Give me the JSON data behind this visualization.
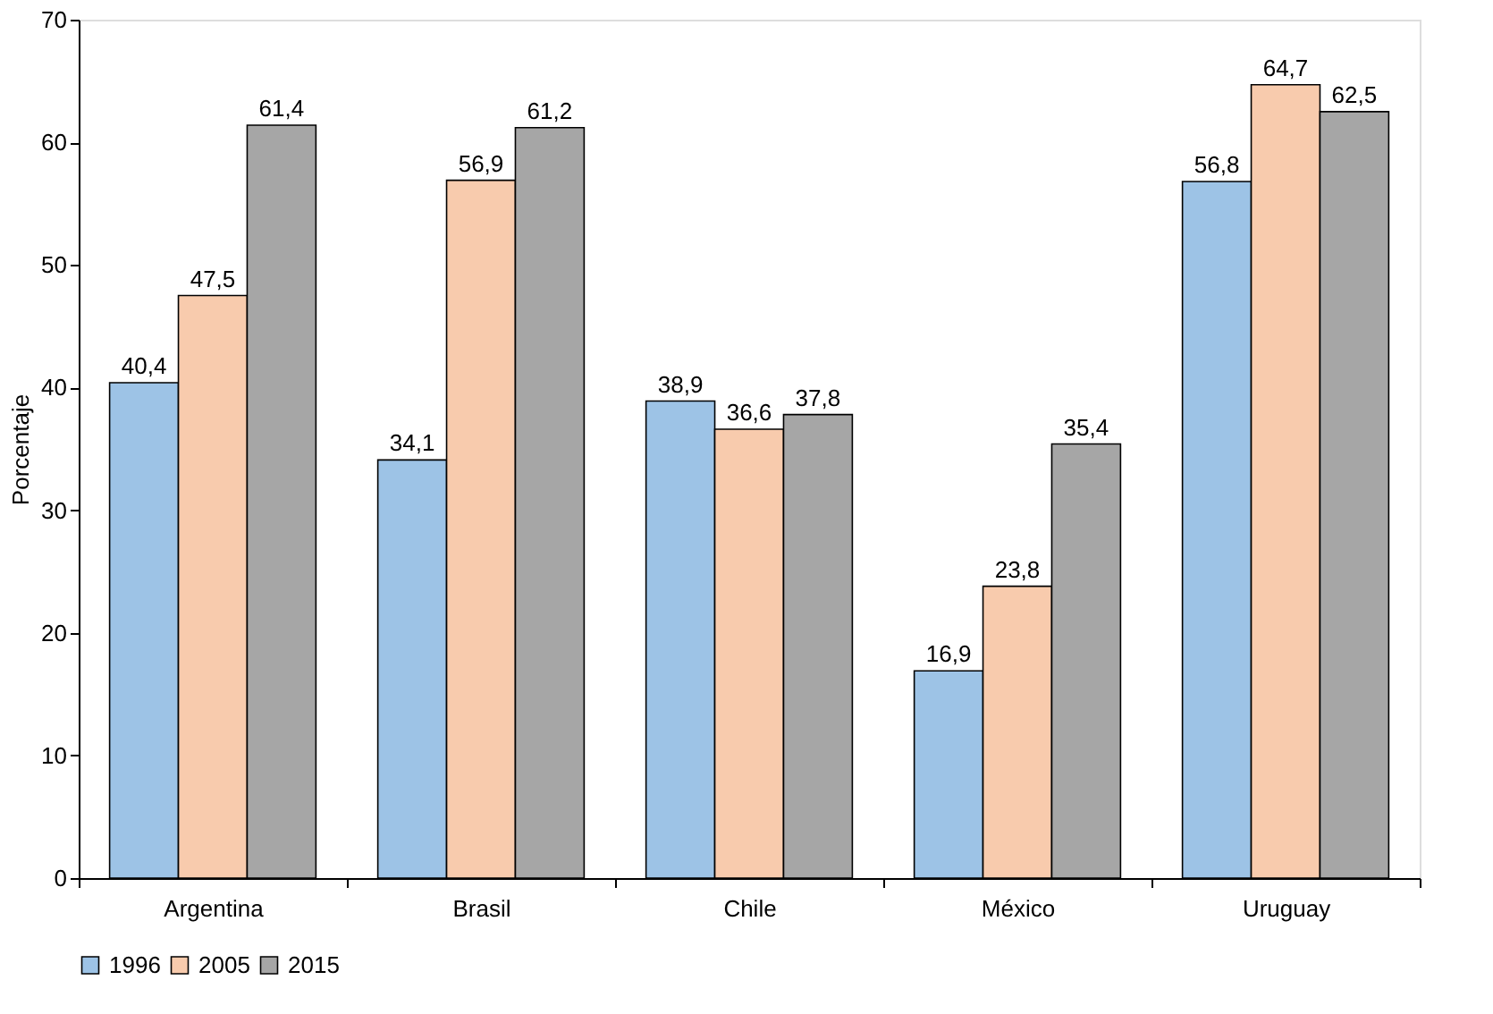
{
  "chart_data": {
    "type": "bar",
    "ylabel": "Porcentaje",
    "categories": [
      "Argentina",
      "Brasil",
      "Chile",
      "México",
      "Uruguay"
    ],
    "series": [
      {
        "name": "1996",
        "color": "#9dc3e6",
        "values": [
          40.4,
          34.1,
          38.9,
          16.9,
          56.8
        ],
        "value_labels": [
          "40,4",
          "34,1",
          "38,9",
          "16,9",
          "56,8"
        ]
      },
      {
        "name": "2005",
        "color": "#f8cbad",
        "values": [
          47.5,
          56.9,
          36.6,
          23.8,
          64.7
        ],
        "value_labels": [
          "47,5",
          "56,9",
          "36,6",
          "23,8",
          "64,7"
        ]
      },
      {
        "name": "2015",
        "color": "#a6a6a6",
        "values": [
          61.4,
          61.2,
          37.8,
          35.4,
          62.5
        ],
        "value_labels": [
          "61,4",
          "61,2",
          "37,8",
          "35,4",
          "62,5"
        ]
      }
    ],
    "ylim": [
      0,
      70
    ],
    "yticks": [
      0,
      10,
      20,
      30,
      40,
      50,
      60,
      70
    ],
    "grid": false,
    "legend": "bottom"
  }
}
